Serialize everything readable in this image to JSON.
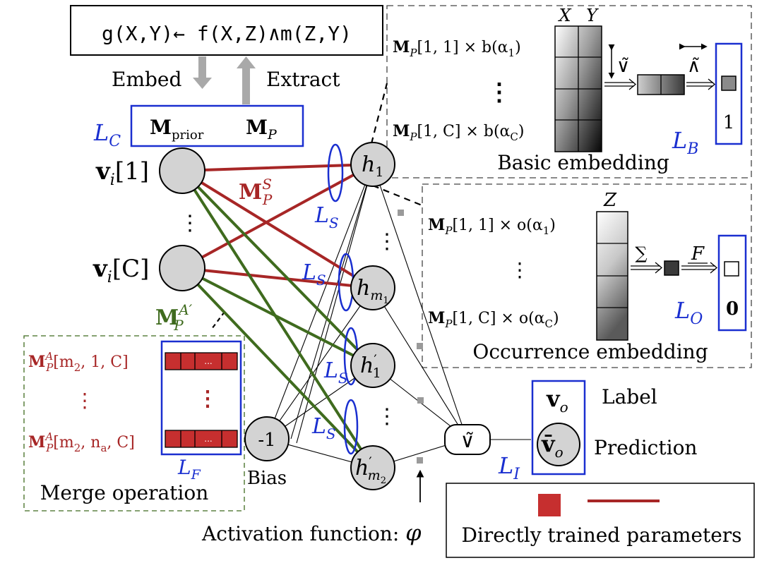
{
  "rule": "g(X,Y)← f(X,Z)∧m(Z,Y)",
  "arrows": {
    "embed": "Embed",
    "extract": "Extract"
  },
  "matrices": {
    "prior": "M",
    "prior_sub": "prior",
    "mp": "M",
    "mp_sub": "P"
  },
  "layers": {
    "LC": "L",
    "LC_sub": "C",
    "LS": "L",
    "LS_sub": "S",
    "LB": "L",
    "LB_sub": "B",
    "LO": "L",
    "LO_sub": "O",
    "LF": "L",
    "LF_sub": "F",
    "LI": "L",
    "LI_sub": "I"
  },
  "inputs": {
    "v1": "v",
    "v1_idx": "[1]",
    "vC": "v",
    "vC_idx": "[C]",
    "sub_i": "i",
    "vdots": "⋮"
  },
  "params": {
    "MPS": "M",
    "MPS_sub": "P",
    "MPS_sup": "S",
    "MPA": "M",
    "MPA_sub": "P",
    "MPA_sup": "A′"
  },
  "hidden": {
    "h": "h",
    "h1_sub": "1",
    "hm1_sub": "m",
    "hm1_subsub": "1",
    "h1p_sub": "1",
    "hm2_sub": "m",
    "hm2_subsub": "2",
    "prime": "′",
    "vdots": "⋮"
  },
  "bias": {
    "value": "-1",
    "label": "Bias"
  },
  "basic": {
    "row1": "M",
    "row1_sub": "P",
    "row1_rest": "[1, 1] × b(α",
    "row1_a": "1",
    "row1_end": ")",
    "rowC": "M",
    "rowC_sub": "P",
    "rowC_rest": "[1, C] × b(α",
    "rowC_a": "C",
    "rowC_end": ")",
    "vdots": "⋮",
    "col_x": "X",
    "col_y": "Y",
    "or_op": "∨̃",
    "and_op": "∧̃",
    "out_value": "1",
    "title": "Basic embedding"
  },
  "occurrence": {
    "row1": "M",
    "row1_sub": "P",
    "row1_rest": "[1, 1] × o(α",
    "row1_a": "1",
    "row1_end": ")",
    "rowC": "M",
    "rowC_sub": "P",
    "rowC_rest": "[1, C] × o(α",
    "rowC_a": "C",
    "rowC_end": ")",
    "vdots": "⋮",
    "col_z": "Z",
    "sum_op": "∑",
    "f_op": "F",
    "out_value": "0",
    "title": "Occurrence embedding"
  },
  "merge": {
    "row1": "M",
    "row1_sub": "P",
    "row1_sup": "A",
    "row1_rest": "[m",
    "row1_2": "2",
    "row1_end": ", 1, C]",
    "rown": "M",
    "rown_sub": "P",
    "rown_sup": "A",
    "rown_rest": "[m",
    "rown_2": "2",
    "rown_mid": ", n",
    "rown_a": "a",
    "rown_end": ", C]",
    "vdots": "⋮",
    "cell_ellipsis": "...",
    "title": "Merge operation"
  },
  "output": {
    "or_node": "∨̃",
    "vo": "v",
    "vo_sub": "o",
    "vo_bar": "v̄",
    "vo_bar_sub": "o",
    "label": "Label",
    "prediction": "Prediction"
  },
  "activation": {
    "label": "Activation function: ",
    "symbol": "φ"
  },
  "legend": {
    "text": "Directly trained parameters"
  },
  "colors": {
    "blue": "#1a2fd0",
    "red": "#a72626",
    "green": "#3f6b1e",
    "node_fill": "#d3d3d3",
    "arrow_gray": "#a9a9a9",
    "dot_gray": "#9a9a9a"
  }
}
